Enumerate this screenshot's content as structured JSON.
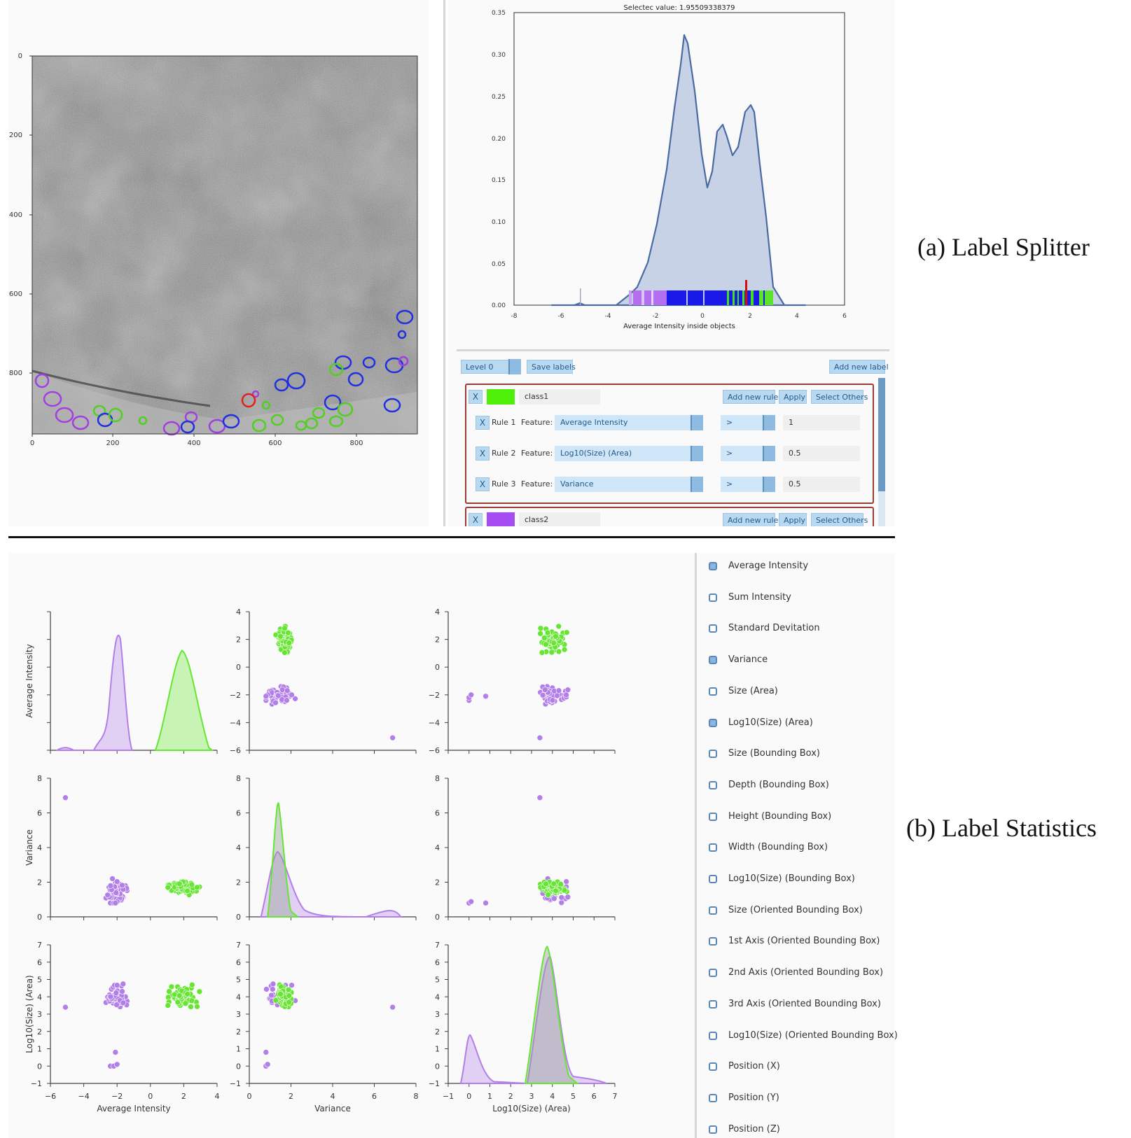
{
  "captions": {
    "a": "(a) Label Splitter",
    "b": "(b) Label Statistics"
  },
  "image_view": {
    "y_ticks": [
      "0",
      "200",
      "400",
      "600",
      "800"
    ],
    "x_ticks": [
      "0",
      "200",
      "400",
      "600",
      "800"
    ]
  },
  "histogram": {
    "title": "Selectec value: 1.95509338379",
    "xlabel": "Average Intensity inside objects",
    "x_ticks": [
      "-8",
      "-6",
      "-4",
      "-2",
      "0",
      "2",
      "4",
      "6"
    ],
    "y_ticks": [
      "0.00",
      "0.05",
      "0.10",
      "0.15",
      "0.20",
      "0.25",
      "0.30",
      "0.35"
    ]
  },
  "controls": {
    "level_label": "Level 0",
    "save_labels": "Save labels",
    "add_new_label": "Add new label",
    "classes": [
      {
        "x": "X",
        "color": "#4ef00a",
        "name": "class1",
        "add_rule": "Add new rule",
        "apply": "Apply",
        "select_others": "Select Others",
        "rules": [
          {
            "x": "X",
            "rule": "Rule 1",
            "feature_label": "Feature:",
            "feature": "Average Intensity",
            "op": ">",
            "value": "1"
          },
          {
            "x": "X",
            "rule": "Rule 2",
            "feature_label": "Feature:",
            "feature": "Log10(Size) (Area)",
            "op": ">",
            "value": "0.5"
          },
          {
            "x": "X",
            "rule": "Rule 3",
            "feature_label": "Feature:",
            "feature": "Variance",
            "op": ">",
            "value": "0.5"
          }
        ]
      },
      {
        "x": "X",
        "color": "#a64df2",
        "name": "class2",
        "add_rule": "Add new rule",
        "apply": "Apply",
        "select_others": "Select Others"
      }
    ]
  },
  "feature_list": [
    {
      "label": "Average Intensity",
      "checked": true
    },
    {
      "label": "Sum Intensity",
      "checked": false
    },
    {
      "label": "Standard Devitation",
      "checked": false
    },
    {
      "label": "Variance",
      "checked": true
    },
    {
      "label": "Size (Area)",
      "checked": false
    },
    {
      "label": "Log10(Size) (Area)",
      "checked": true
    },
    {
      "label": "Size (Bounding Box)",
      "checked": false
    },
    {
      "label": "Depth (Bounding Box)",
      "checked": false
    },
    {
      "label": "Height (Bounding Box)",
      "checked": false
    },
    {
      "label": "Width (Bounding Box)",
      "checked": false
    },
    {
      "label": "Log10(Size) (Bounding Box)",
      "checked": false
    },
    {
      "label": "Size (Oriented Bounding Box)",
      "checked": false
    },
    {
      "label": "1st Axis (Oriented Bounding Box)",
      "checked": false
    },
    {
      "label": "2nd Axis (Oriented Bounding Box)",
      "checked": false
    },
    {
      "label": "3rd Axis (Oriented Bounding Box)",
      "checked": false
    },
    {
      "label": "Log10(Size) (Oriented Bounding Box)",
      "checked": false
    },
    {
      "label": "Position (X)",
      "checked": false
    },
    {
      "label": "Position (Y)",
      "checked": false
    },
    {
      "label": "Position (Z)",
      "checked": false
    }
  ],
  "pairplot": {
    "variables": [
      "Average Intensity",
      "Variance",
      "Log10(Size) (Area)"
    ],
    "ticks": {
      "Average Intensity": [
        "-6",
        "-4",
        "-2",
        "0",
        "2",
        "4"
      ],
      "Variance": [
        "0",
        "2",
        "4",
        "6",
        "8"
      ],
      "Log10(Size) (Area)": [
        "-1",
        "0",
        "1",
        "2",
        "3",
        "4",
        "5",
        "6",
        "7"
      ]
    },
    "row_ticks": {
      "Average Intensity": [
        "4",
        "2",
        "0",
        "−2",
        "−4",
        "−6"
      ],
      "Variance": [
        "8",
        "6",
        "4",
        "2",
        "0"
      ],
      "Log10(Size) (Area)": [
        "7",
        "6",
        "5",
        "4",
        "3",
        "2",
        "1",
        "0",
        "−1"
      ]
    },
    "x_ticks": {
      "Average Intensity": [
        "−6",
        "−4",
        "−2",
        "0",
        "2",
        "4"
      ],
      "Variance": [
        "0",
        "2",
        "4",
        "6",
        "8"
      ],
      "Log10(Size) (Area)": [
        "−1",
        "0",
        "1",
        "2",
        "3",
        "4",
        "5",
        "6",
        "7"
      ]
    },
    "colors": {
      "class1": "#66e632",
      "class2": "#b27fe8"
    }
  }
}
